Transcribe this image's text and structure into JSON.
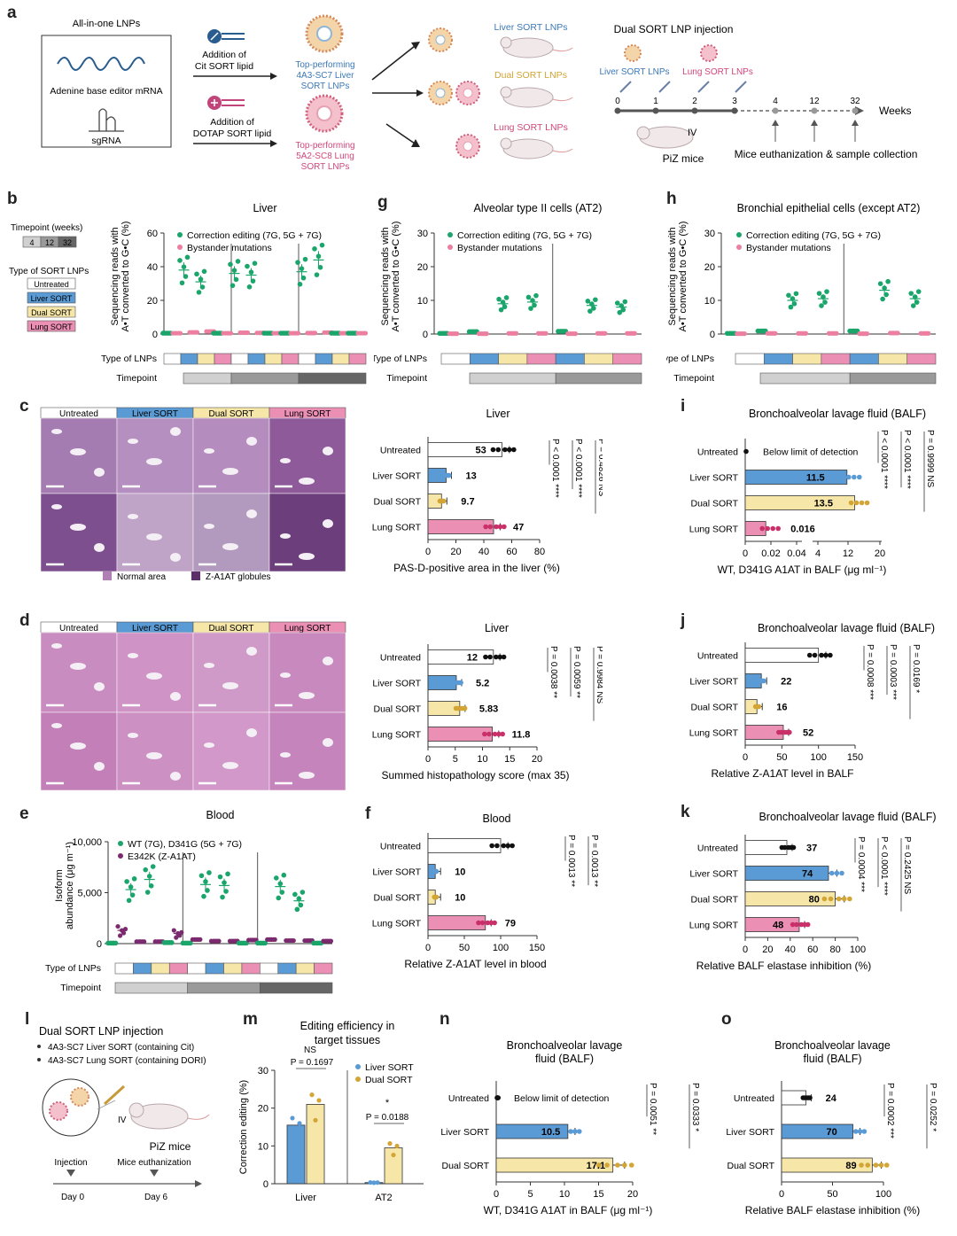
{
  "colors": {
    "untreated": "#ffffff",
    "liver": "#5b9bd5",
    "dual": "#f6e7a8",
    "lung": "#ec8fb4",
    "green": "#1aa56b",
    "pink": "#ec7fa0",
    "purple": "#7b2a6e",
    "gold": "#d2a534",
    "tp1": "#d0d0d0",
    "tp2": "#9a9a9a",
    "tp3": "#666666",
    "tissue": "#b07fb4",
    "tissueDark": "#5c2f68"
  },
  "letters": {
    "a": "a",
    "b": "b",
    "c": "c",
    "d": "d",
    "e": "e",
    "f": "f",
    "g": "g",
    "h": "h",
    "i": "i",
    "j": "j",
    "k": "k",
    "l": "l",
    "m": "m",
    "n": "n",
    "o": "o"
  },
  "a": {
    "box_title": "All-in-one LNPs",
    "mrna": "Adenine base editor mRNA",
    "sgrna": "sgRNA",
    "add1": "Addition of",
    "add1b": "Cit SORT lipid",
    "add2": "Addition of",
    "add2b": "DOTAP SORT lipid",
    "top1a": "Top-performing",
    "top1b": "4A3-SC7 Liver",
    "top1c": "SORT LNPs",
    "top2a": "Top-performing",
    "top2b": "5A2-SC8 Lung",
    "top2c": "SORT LNPs",
    "liver_lnp": "Liver SORT LNPs",
    "dual_lnp": "Dual SORT LNPs",
    "lung_lnp": "Lung SORT LNPs",
    "dual_inj": "Dual SORT LNP injection",
    "liver_small": "Liver SORT LNPs",
    "lung_small": "Lung SORT LNPs",
    "ticks": [
      "0",
      "1",
      "2",
      "3",
      "4",
      "12",
      "32"
    ],
    "weeks": "Weeks",
    "iv": "IV",
    "piz": "PiZ mice",
    "euth": "Mice euthanization & sample collection"
  },
  "b_legend": {
    "timepoint": "Timepoint (weeks)",
    "tp": [
      "4",
      "12",
      "32"
    ],
    "type": "Type of SORT LNPs",
    "types": [
      "Untreated",
      "Liver SORT",
      "Dual SORT",
      "Lung SORT"
    ]
  },
  "b": {
    "title": "Liver",
    "ylabel1": "Sequencing reads with",
    "ylabel2": "A•T converted to G•C (%)",
    "yticks": [
      "0",
      "20",
      "40",
      "60"
    ],
    "ymax": 60,
    "leg1": "Correction editing (7G, 5G + 7G)",
    "leg2": "Bystander mutations",
    "type_label": "Type of LNPs",
    "tp_label": "Timepoint",
    "groups": [
      0,
      1,
      2,
      3,
      0,
      1,
      2,
      3,
      0,
      1,
      2,
      3
    ],
    "tp": [
      0,
      0,
      0,
      0,
      1,
      1,
      1,
      1,
      2,
      2,
      2,
      2
    ],
    "corr": [
      0.5,
      38,
      31,
      0.5,
      36,
      35,
      0.5,
      0.5,
      37,
      44,
      0.5,
      0.5
    ],
    "bys": [
      0.5,
      1,
      1.5,
      0.5,
      0.8,
      0.7,
      0.5,
      0.5,
      0.6,
      0.9,
      0.5,
      0.5
    ]
  },
  "g": {
    "title": "Alveolar type II cells (AT2)",
    "ylabel1": "Sequencing reads with",
    "ylabel2": "A•T converted to G•C (%)",
    "yticks": [
      "0",
      "10",
      "20",
      "30"
    ],
    "ymax": 30,
    "leg1": "Correction editing (7G, 5G + 7G)",
    "leg2": "Bystander mutations",
    "type_label": "Type of LNPs",
    "tp_label": "Timepoint",
    "groups": [
      0,
      1,
      2,
      3,
      1,
      2,
      3
    ],
    "tp": [
      0,
      0,
      0,
      0,
      1,
      1,
      1
    ],
    "corr": [
      0.2,
      0.7,
      9,
      9.5,
      0.8,
      8.5,
      8
    ],
    "bys": [
      0.1,
      0.1,
      0.2,
      0.2,
      0.1,
      0.2,
      0.2
    ]
  },
  "h": {
    "title": "Bronchial epithelial cells (except AT2)",
    "ylabel1": "Sequencing reads with",
    "ylabel2": "A•T converted to G•C (%)",
    "yticks": [
      "0",
      "10",
      "20",
      "30"
    ],
    "ymax": 30,
    "leg1": "Correction editing (7G, 5G + 7G)",
    "leg2": "Bystander mutations",
    "type_label": "Type of LNPs",
    "tp_label": "Timepoint",
    "groups": [
      0,
      1,
      2,
      3,
      1,
      2,
      3
    ],
    "tp": [
      0,
      0,
      0,
      0,
      1,
      1,
      1
    ],
    "corr": [
      0.2,
      0.9,
      10,
      10.5,
      0.9,
      13,
      10.5
    ],
    "bys": [
      0.1,
      0.2,
      0.2,
      0.2,
      0.1,
      0.3,
      0.2
    ]
  },
  "c": {
    "headers": [
      "Untreated",
      "Liver SORT",
      "Dual SORT",
      "Lung SORT"
    ],
    "leg1": "Normal area",
    "leg2": "Z-A1AT globules",
    "title": "Liver",
    "xlabel": "PAS-D-positive area in the liver (%)",
    "xticks": [
      "0",
      "20",
      "40",
      "60",
      "80"
    ],
    "xmax": 80,
    "cats": [
      "Untreated",
      "Liver SORT",
      "Dual SORT",
      "Lung SORT"
    ],
    "values": [
      53,
      13,
      9.7,
      47
    ],
    "labels": [
      "53",
      "13",
      "9.7",
      "47"
    ],
    "p": [
      "P < 0.0001 ****",
      "P < 0.0001 ****",
      "P = 0.4826 NS"
    ]
  },
  "d": {
    "headers": [
      "Untreated",
      "Liver SORT",
      "Dual SORT",
      "Lung SORT"
    ],
    "title": "Liver",
    "xlabel": "Summed histopathology score (max 35)",
    "xticks": [
      "0",
      "5",
      "10",
      "15",
      "20"
    ],
    "xmax": 20,
    "cats": [
      "Untreated",
      "Liver SORT",
      "Dual SORT",
      "Lung SORT"
    ],
    "values": [
      12,
      5.2,
      5.83,
      11.8
    ],
    "labels": [
      "12",
      "5.2",
      "5.83",
      "11.8"
    ],
    "p": [
      "P = 0.0038 **",
      "P = 0.0059 **",
      "P = 0.9984 NS"
    ]
  },
  "e": {
    "title": "Blood",
    "ylabel1": "Isoform",
    "ylabel2": "abundance (μg m⁻¹)",
    "yticks": [
      "0",
      "5,000",
      "10,000"
    ],
    "ymax": 10000,
    "leg1": "WT (7G), D341G (5G + 7G)",
    "leg2": "E342K (Z-A1AT)",
    "type_label": "Type of LNPs",
    "tp_label": "Timepoint",
    "groups": [
      0,
      1,
      2,
      3,
      0,
      1,
      2,
      3,
      0,
      1,
      2,
      3
    ],
    "tp": [
      0,
      0,
      0,
      0,
      1,
      1,
      1,
      1,
      2,
      2,
      2,
      2
    ],
    "wt": [
      50,
      5300,
      6300,
      100,
      50,
      5800,
      5700,
      50,
      50,
      5600,
      4200,
      50
    ],
    "z": [
      1300,
      200,
      200,
      1000,
      400,
      250,
      250,
      350,
      400,
      300,
      300,
      250
    ]
  },
  "f": {
    "title": "Blood",
    "xlabel": "Relative Z-A1AT level in blood",
    "xticks": [
      "0",
      "50",
      "100",
      "150"
    ],
    "xmax": 150,
    "cats": [
      "Untreated",
      "Liver SORT",
      "Dual SORT",
      "Lung SORT"
    ],
    "values": [
      100,
      10,
      10,
      79
    ],
    "labels": [
      "",
      "10",
      "10",
      "79"
    ],
    "p": [
      "P = 0.0013 **",
      "P = 0.0013 **",
      "P = 0.5944 NS"
    ]
  },
  "i": {
    "title": "Bronchoalveolar lavage fluid (BALF)",
    "xlabel": "WT, D341G A1AT in BALF (μg ml⁻¹)",
    "xticks": [
      "0",
      "0.02",
      "0.04",
      "4",
      "12",
      "20"
    ],
    "bld": "Below limit of detection",
    "cats": [
      "Untreated",
      "Liver SORT",
      "Dual SORT",
      "Lung SORT"
    ],
    "labels": [
      "",
      "11.5",
      "13.5",
      "0.016"
    ],
    "values": [
      0,
      11.5,
      13.5,
      0.016
    ],
    "p": [
      "P < 0.0001 ****",
      "P < 0.0001 ****",
      "P = 0.9999 NS"
    ]
  },
  "j": {
    "title": "Bronchoalveolar lavage fluid (BALF)",
    "xlabel": "Relative Z-A1AT level in BALF",
    "xticks": [
      "0",
      "50",
      "100",
      "150"
    ],
    "xmax": 150,
    "cats": [
      "Untreated",
      "Liver SORT",
      "Dual SORT",
      "Lung SORT"
    ],
    "values": [
      100,
      22,
      16,
      52
    ],
    "labels": [
      "",
      "22",
      "16",
      "52"
    ],
    "p": [
      "P = 0.0008 ***",
      "P = 0.0003 ***",
      "P = 0.0169 *"
    ]
  },
  "k": {
    "title": "Bronchoalveolar lavage fluid (BALF)",
    "xlabel": "Relative BALF elastase inhibition (%)",
    "xticks": [
      "0",
      "20",
      "40",
      "60",
      "80",
      "100"
    ],
    "xmax": 100,
    "cats": [
      "Untreated",
      "Liver SORT",
      "Dual SORT",
      "Lung SORT"
    ],
    "values": [
      37,
      74,
      80,
      48
    ],
    "labels": [
      "37",
      "74",
      "80",
      "48"
    ],
    "p": [
      "P = 0.0004 ***",
      "P < 0.0001 ****",
      "P = 0.2425 NS"
    ]
  },
  "l": {
    "title": "Dual SORT LNP injection",
    "b1": "4A3-SC7 Liver SORT (containing Cit)",
    "b2": "4A3-SC7 Lung SORT (containing DORI)",
    "iv": "IV",
    "piz": "PiZ mice",
    "inj": "Injection",
    "euth": "Mice euthanization",
    "d0": "Day 0",
    "d6": "Day 6"
  },
  "m": {
    "title1": "Editing efficiency in",
    "title2": "target tissues",
    "ylabel": "Correction editing (%)",
    "yticks": [
      "0",
      "10",
      "20",
      "30"
    ],
    "ymax": 30,
    "leg1": "Liver SORT",
    "leg2": "Dual SORT",
    "ns": "NS",
    "p1": "P = 0.1697",
    "star": "*",
    "p2": "P = 0.0188",
    "cats": [
      "Liver",
      "AT2"
    ],
    "liver": [
      15.5,
      0.3
    ],
    "dual": [
      21,
      9.5
    ]
  },
  "n": {
    "title1": "Bronchoalveolar lavage",
    "title2": "fluid (BALF)",
    "xlabel": "WT, D341G A1AT  in BALF (μg ml⁻¹)",
    "xticks": [
      "0",
      "5",
      "10",
      "15",
      "20"
    ],
    "xmax": 20,
    "bld": "Below limit of detection",
    "cats": [
      "Untreated",
      "Liver SORT",
      "Dual SORT"
    ],
    "values": [
      0,
      10.5,
      17.1
    ],
    "labels": [
      "",
      "10.5",
      "17.1"
    ],
    "p": [
      "P = 0.0051 **",
      "P = 0.0333 *",
      "P = 0.0001 ***"
    ]
  },
  "o": {
    "title1": "Bronchoalveolar lavage",
    "title2": "fluid (BALF)",
    "xlabel": "Relative BALF elastase inhibition (%)",
    "xticks": [
      "0",
      "50",
      "100"
    ],
    "xmax": 100,
    "cats": [
      "Untreated",
      "Liver SORT",
      "Dual SORT"
    ],
    "values": [
      24,
      70,
      89
    ],
    "labels": [
      "24",
      "70",
      "89"
    ],
    "p": [
      "P = 0.0002 ***",
      "P = 0.0252 *",
      "P < 0.0001 ****"
    ]
  }
}
